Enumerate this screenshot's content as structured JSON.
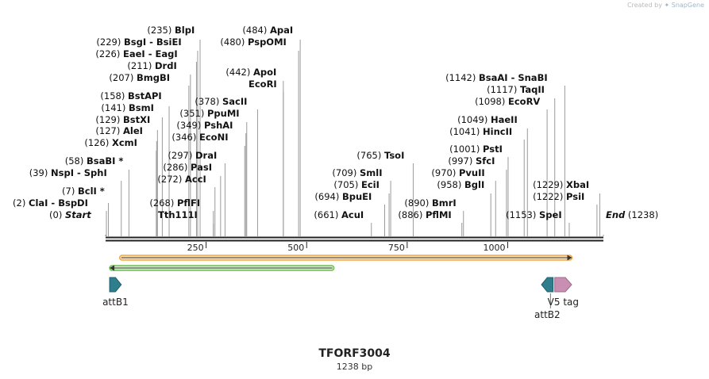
{
  "credit": {
    "prefix": "Created by",
    "brand": "SnapGene"
  },
  "title": "TFORF3004",
  "length_label": "1238 bp",
  "sequence_length": 1238,
  "ruler": {
    "ticks": [
      250,
      500,
      750,
      1000
    ]
  },
  "colors": {
    "backbone": "#222222",
    "orange_feature": "#f7a540",
    "orange_fill": "#fbe4bf",
    "green_feature": "#6ac04b",
    "green_fill": "#d8f0cf",
    "teal": "#2f7e8e",
    "pink": "#c98fb3"
  },
  "sites": [
    {
      "name": "Start",
      "pos": "(0)",
      "bp": 0,
      "italic": true
    },
    {
      "name": "ClaI",
      "alt": "BspDI",
      "pos": "(2)",
      "bp": 2
    },
    {
      "name": "BclI *",
      "pos": "(7)",
      "bp": 7
    },
    {
      "name": "NspI",
      "alt": "SphI",
      "pos": "(39)",
      "bp": 39
    },
    {
      "name": "BsaBI *",
      "pos": "(58)",
      "bp": 58
    },
    {
      "name": "XcmI",
      "pos": "(126)",
      "bp": 126
    },
    {
      "name": "AleI",
      "pos": "(127)",
      "bp": 127
    },
    {
      "name": "BstXI",
      "pos": "(129)",
      "bp": 129
    },
    {
      "name": "BsmI",
      "pos": "(141)",
      "bp": 141
    },
    {
      "name": "BstAPI",
      "pos": "(158)",
      "bp": 158
    },
    {
      "name": "BmgBI",
      "pos": "(207)",
      "bp": 207
    },
    {
      "name": "DrdI",
      "pos": "(211)",
      "bp": 211
    },
    {
      "name": "EaeI",
      "alt": "EagI",
      "pos": "(226)",
      "bp": 226
    },
    {
      "name": "BsgI",
      "alt": "BsiEI",
      "pos": "(229)",
      "bp": 229
    },
    {
      "name": "BlpI",
      "pos": "(235)",
      "bp": 235
    },
    {
      "name": "Tth111I",
      "pos": "",
      "bp": 268
    },
    {
      "name": "PflFI",
      "pos": "(268)",
      "bp": 268
    },
    {
      "name": "AccI",
      "pos": "(272)",
      "bp": 272
    },
    {
      "name": "PasI",
      "pos": "(286)",
      "bp": 286
    },
    {
      "name": "DraI",
      "pos": "(297)",
      "bp": 297
    },
    {
      "name": "EcoNI",
      "pos": "(346)",
      "bp": 346
    },
    {
      "name": "PshAI",
      "pos": "(349)",
      "bp": 349
    },
    {
      "name": "PpuMI",
      "pos": "(351)",
      "bp": 351
    },
    {
      "name": "SacII",
      "pos": "(378)",
      "bp": 378
    },
    {
      "name": "EcoRI",
      "pos": "",
      "bp": 442
    },
    {
      "name": "ApoI",
      "pos": "(442)",
      "bp": 442
    },
    {
      "name": "PspOMI",
      "pos": "(480)",
      "bp": 480
    },
    {
      "name": "ApaI",
      "pos": "(484)",
      "bp": 484
    },
    {
      "name": "AcuI",
      "pos": "(661)",
      "bp": 661
    },
    {
      "name": "BpuEI",
      "pos": "(694)",
      "bp": 694
    },
    {
      "name": "EciI",
      "pos": "(705)",
      "bp": 705
    },
    {
      "name": "SmlI",
      "pos": "(709)",
      "bp": 709
    },
    {
      "name": "TsoI",
      "pos": "(765)",
      "bp": 765
    },
    {
      "name": "PflMI",
      "pos": "(886)",
      "bp": 886
    },
    {
      "name": "BmrI",
      "pos": "(890)",
      "bp": 890
    },
    {
      "name": "BglI",
      "pos": "(958)",
      "bp": 958
    },
    {
      "name": "PvuII",
      "pos": "(970)",
      "bp": 970
    },
    {
      "name": "SfcI",
      "pos": "(997)",
      "bp": 997
    },
    {
      "name": "PstI",
      "pos": "(1001)",
      "bp": 1001
    },
    {
      "name": "HincII",
      "pos": "(1041)",
      "bp": 1041
    },
    {
      "name": "HaeII",
      "pos": "(1049)",
      "bp": 1049
    },
    {
      "name": "EcoRV",
      "pos": "(1098)",
      "bp": 1098
    },
    {
      "name": "TaqII",
      "pos": "(1117)",
      "bp": 1117
    },
    {
      "name": "BsaAI",
      "alt": "SnaBI",
      "pos": "(1142)",
      "bp": 1142
    },
    {
      "name": "SpeI",
      "pos": "(1153)",
      "bp": 1153
    },
    {
      "name": "PsiI",
      "pos": "(1222)",
      "bp": 1222
    },
    {
      "name": "XbaI",
      "pos": "(1229)",
      "bp": 1229
    },
    {
      "name": "End",
      "pos": "(1238)",
      "bp": 1238,
      "italic": true
    }
  ],
  "features": [
    {
      "name": "orange-orf",
      "label": "",
      "start": 35,
      "end": 1160,
      "strand": "forward",
      "color": "orange"
    },
    {
      "name": "green-orf",
      "label": "",
      "start": 10,
      "end": 568,
      "strand": "reverse",
      "color": "green"
    },
    {
      "name": "attB1",
      "label": "attB1",
      "start": 10,
      "end": 39,
      "strand": "forward",
      "color": "teal"
    },
    {
      "name": "attB2",
      "label": "attB2",
      "start": 1084,
      "end": 1113,
      "strand": "reverse",
      "color": "teal"
    },
    {
      "name": "v5-tag",
      "label": "V5 tag",
      "start": 1117,
      "end": 1159,
      "strand": "forward",
      "color": "pink"
    }
  ]
}
